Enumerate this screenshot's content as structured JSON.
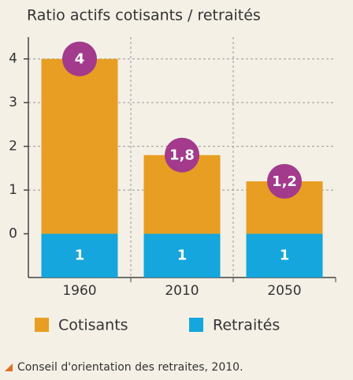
{
  "chart_data": {
    "type": "bar",
    "title": "Ratio actifs cotisants / retraités",
    "categories": [
      "1960",
      "2010",
      "2050"
    ],
    "series": [
      {
        "name": "Cotisants",
        "color": "#e79e22",
        "values": [
          4,
          1.8,
          1.2
        ],
        "value_labels": [
          "4",
          "1,8",
          "1,2"
        ]
      },
      {
        "name": "Retraités",
        "color": "#14a6dc",
        "values": [
          1,
          1,
          1
        ]
      }
    ],
    "ylim": [
      -1,
      4.5
    ],
    "yticks": [
      0,
      1,
      2,
      3,
      4
    ],
    "grid": true,
    "source": "Conseil d'orientation des retraites, 2010."
  }
}
